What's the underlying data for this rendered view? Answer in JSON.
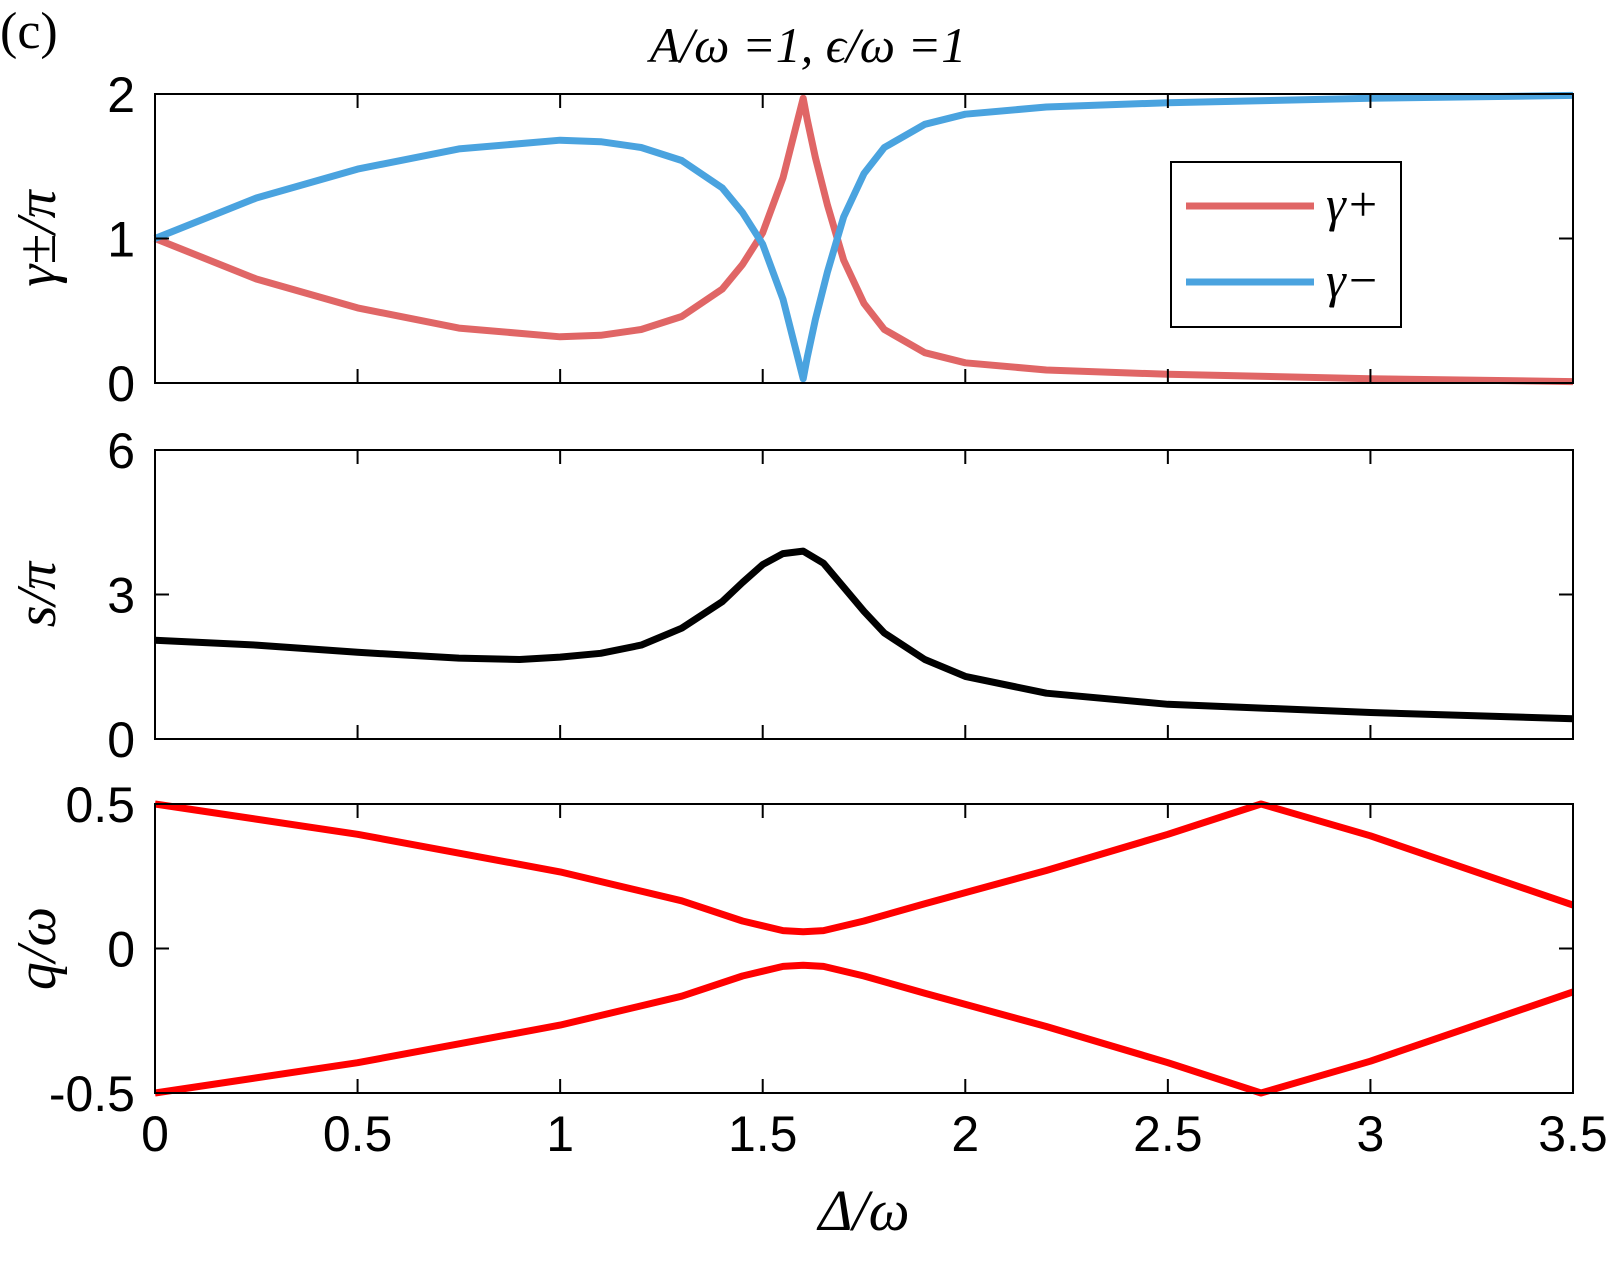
{
  "panel_label": "(c)",
  "title": "A/ω =1, ϵ/ω =1",
  "colors": {
    "gamma_plus": "#e06666",
    "gamma_minus": "#4aa3df",
    "s": "#000000",
    "q": "#ff0000"
  },
  "chart_data": [
    {
      "type": "line",
      "panel": "top",
      "ylabel": "γ±/π",
      "xlim": [
        0,
        3.5
      ],
      "ylim": [
        0,
        2
      ],
      "yticks": [
        0,
        1,
        2
      ],
      "yticklabels": [
        "0",
        "1",
        "2"
      ],
      "xticks": [
        0,
        0.5,
        1,
        1.5,
        2,
        2.5,
        3,
        3.5
      ],
      "legend": {
        "placement": "top-right",
        "entries": [
          "γ+",
          "γ−"
        ]
      },
      "series": [
        {
          "name": "γ+",
          "color_key": "gamma_plus",
          "x": [
            0,
            0.25,
            0.5,
            0.75,
            1.0,
            1.1,
            1.2,
            1.3,
            1.4,
            1.45,
            1.5,
            1.55,
            1.58,
            1.6,
            1.61,
            1.63,
            1.66,
            1.7,
            1.75,
            1.8,
            1.9,
            2.0,
            2.2,
            2.5,
            3.0,
            3.5
          ],
          "values": [
            1.0,
            0.72,
            0.52,
            0.38,
            0.32,
            0.33,
            0.37,
            0.46,
            0.65,
            0.82,
            1.04,
            1.42,
            1.75,
            1.97,
            1.82,
            1.56,
            1.23,
            0.85,
            0.55,
            0.37,
            0.21,
            0.14,
            0.09,
            0.06,
            0.03,
            0.01
          ]
        },
        {
          "name": "γ−",
          "color_key": "gamma_minus",
          "x": [
            0,
            0.25,
            0.5,
            0.75,
            1.0,
            1.1,
            1.2,
            1.3,
            1.4,
            1.45,
            1.5,
            1.55,
            1.58,
            1.6,
            1.61,
            1.63,
            1.66,
            1.7,
            1.75,
            1.8,
            1.9,
            2.0,
            2.2,
            2.5,
            3.0,
            3.5
          ],
          "values": [
            1.0,
            1.28,
            1.48,
            1.62,
            1.68,
            1.67,
            1.63,
            1.54,
            1.35,
            1.18,
            0.96,
            0.58,
            0.25,
            0.03,
            0.18,
            0.44,
            0.77,
            1.15,
            1.45,
            1.63,
            1.79,
            1.86,
            1.91,
            1.94,
            1.97,
            1.99
          ]
        }
      ]
    },
    {
      "type": "line",
      "panel": "middle",
      "ylabel": "s/π",
      "xlim": [
        0,
        3.5
      ],
      "ylim": [
        0,
        6
      ],
      "yticks": [
        0,
        3,
        6
      ],
      "yticklabels": [
        "0",
        "3",
        "6"
      ],
      "xticks": [
        0,
        0.5,
        1,
        1.5,
        2,
        2.5,
        3,
        3.5
      ],
      "series": [
        {
          "name": "s",
          "color_key": "s",
          "x": [
            0,
            0.25,
            0.5,
            0.75,
            0.9,
            1.0,
            1.1,
            1.2,
            1.3,
            1.4,
            1.45,
            1.5,
            1.55,
            1.6,
            1.65,
            1.7,
            1.75,
            1.8,
            1.9,
            2.0,
            2.2,
            2.5,
            3.0,
            3.5
          ],
          "values": [
            2.05,
            1.95,
            1.8,
            1.68,
            1.65,
            1.7,
            1.78,
            1.95,
            2.3,
            2.85,
            3.25,
            3.62,
            3.85,
            3.9,
            3.65,
            3.15,
            2.65,
            2.2,
            1.65,
            1.3,
            0.95,
            0.72,
            0.55,
            0.42
          ]
        }
      ]
    },
    {
      "type": "line",
      "panel": "bottom",
      "ylabel": "q/ω",
      "xlabel": "Δ/ω",
      "xlim": [
        0,
        3.5
      ],
      "ylim": [
        -0.5,
        0.5
      ],
      "yticks": [
        -0.5,
        0,
        0.5
      ],
      "yticklabels": [
        "-0.5",
        "0",
        "0.5"
      ],
      "xticks": [
        0,
        0.5,
        1,
        1.5,
        2,
        2.5,
        3,
        3.5
      ],
      "xticklabels": [
        "0",
        "0.5",
        "1",
        "1.5",
        "2",
        "2.5",
        "3",
        "3.5"
      ],
      "series": [
        {
          "name": "q upper",
          "color_key": "q",
          "x": [
            0,
            0.5,
            1.0,
            1.3,
            1.45,
            1.55,
            1.6,
            1.65,
            1.75,
            1.9,
            2.2,
            2.5,
            2.73,
            3.0,
            3.5
          ],
          "values": [
            0.5,
            0.395,
            0.265,
            0.165,
            0.095,
            0.062,
            0.058,
            0.062,
            0.095,
            0.155,
            0.27,
            0.395,
            0.5,
            0.39,
            0.15
          ]
        },
        {
          "name": "q lower",
          "color_key": "q",
          "x": [
            0,
            0.5,
            1.0,
            1.3,
            1.45,
            1.55,
            1.6,
            1.65,
            1.75,
            1.9,
            2.2,
            2.5,
            2.73,
            3.0,
            3.5
          ],
          "values": [
            -0.5,
            -0.395,
            -0.265,
            -0.165,
            -0.095,
            -0.062,
            -0.058,
            -0.062,
            -0.095,
            -0.155,
            -0.27,
            -0.395,
            -0.5,
            -0.39,
            -0.15
          ]
        }
      ]
    }
  ]
}
